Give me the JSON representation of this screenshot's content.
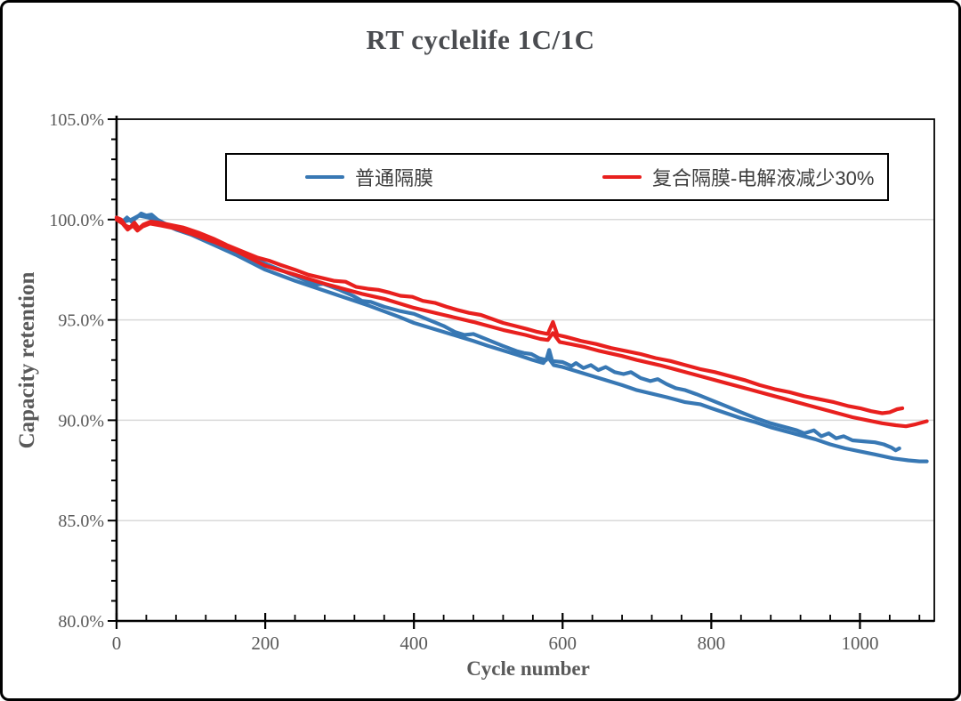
{
  "chart_data": {
    "type": "line",
    "title": "RT cyclelife 1C/1C",
    "xlabel": "Cycle number",
    "ylabel": "Capacity retention",
    "xlim": [
      0,
      1100
    ],
    "ylim": [
      80,
      105
    ],
    "x_major_ticks": [
      0,
      200,
      400,
      600,
      800,
      1000
    ],
    "x_major_labels": [
      "0",
      "200",
      "400",
      "600",
      "800",
      "1000"
    ],
    "x_minor_step": 40,
    "y_major_ticks": [
      80,
      85,
      90,
      95,
      100,
      105
    ],
    "y_major_labels": [
      "80.0%",
      "85.0%",
      "90.0%",
      "95.0%",
      "100.0%",
      "105.0%"
    ],
    "y_minor_step": 1,
    "grid": "horizontal-major-only",
    "gridline_color": "#d9d9d9",
    "axis_color": "#000000",
    "tick_label_color": "#595959",
    "legend_position": "top-inside-framed",
    "legend_entries": [
      "普通隔膜",
      "复合隔膜-电解液减少30%"
    ],
    "series": [
      {
        "id": "blue-cell-1",
        "legend": "普通隔膜",
        "color": "#3878b4",
        "points": [
          [
            0,
            100.1
          ],
          [
            8,
            99.9
          ],
          [
            14,
            100.1
          ],
          [
            20,
            99.9
          ],
          [
            27,
            100.1
          ],
          [
            33,
            100.3
          ],
          [
            40,
            100.2
          ],
          [
            47,
            100.25
          ],
          [
            55,
            100.0
          ],
          [
            65,
            99.8
          ],
          [
            78,
            99.6
          ],
          [
            90,
            99.5
          ],
          [
            105,
            99.3
          ],
          [
            120,
            99.1
          ],
          [
            140,
            98.75
          ],
          [
            160,
            98.4
          ],
          [
            180,
            98.1
          ],
          [
            200,
            97.8
          ],
          [
            220,
            97.5
          ],
          [
            240,
            97.2
          ],
          [
            258,
            96.9
          ],
          [
            268,
            96.75
          ],
          [
            278,
            96.8
          ],
          [
            300,
            96.5
          ],
          [
            318,
            96.2
          ],
          [
            330,
            95.95
          ],
          [
            342,
            95.9
          ],
          [
            360,
            95.65
          ],
          [
            380,
            95.45
          ],
          [
            400,
            95.3
          ],
          [
            420,
            95.0
          ],
          [
            440,
            94.7
          ],
          [
            455,
            94.4
          ],
          [
            468,
            94.25
          ],
          [
            480,
            94.3
          ],
          [
            500,
            94.0
          ],
          [
            520,
            93.7
          ],
          [
            538,
            93.45
          ],
          [
            548,
            93.35
          ],
          [
            558,
            93.3
          ],
          [
            568,
            93.1
          ],
          [
            578,
            93.0
          ],
          [
            582,
            93.5
          ],
          [
            586,
            92.95
          ],
          [
            600,
            92.9
          ],
          [
            612,
            92.7
          ],
          [
            618,
            92.85
          ],
          [
            628,
            92.6
          ],
          [
            638,
            92.75
          ],
          [
            648,
            92.5
          ],
          [
            658,
            92.65
          ],
          [
            670,
            92.4
          ],
          [
            682,
            92.3
          ],
          [
            692,
            92.4
          ],
          [
            705,
            92.1
          ],
          [
            718,
            91.95
          ],
          [
            728,
            92.05
          ],
          [
            740,
            91.8
          ],
          [
            752,
            91.6
          ],
          [
            765,
            91.5
          ],
          [
            780,
            91.3
          ],
          [
            800,
            91.0
          ],
          [
            820,
            90.7
          ],
          [
            840,
            90.4
          ],
          [
            860,
            90.1
          ],
          [
            880,
            89.85
          ],
          [
            900,
            89.65
          ],
          [
            915,
            89.5
          ],
          [
            925,
            89.35
          ],
          [
            938,
            89.5
          ],
          [
            948,
            89.2
          ],
          [
            958,
            89.35
          ],
          [
            968,
            89.1
          ],
          [
            978,
            89.2
          ],
          [
            990,
            89.0
          ],
          [
            1005,
            88.95
          ],
          [
            1020,
            88.9
          ],
          [
            1032,
            88.8
          ],
          [
            1042,
            88.65
          ],
          [
            1048,
            88.5
          ],
          [
            1053,
            88.6
          ]
        ]
      },
      {
        "id": "blue-cell-2",
        "legend": "普通隔膜",
        "color": "#3878b4",
        "points": [
          [
            0,
            100.05
          ],
          [
            10,
            99.9
          ],
          [
            20,
            100.0
          ],
          [
            30,
            100.2
          ],
          [
            42,
            100.1
          ],
          [
            52,
            100.0
          ],
          [
            62,
            99.8
          ],
          [
            80,
            99.5
          ],
          [
            100,
            99.25
          ],
          [
            130,
            98.75
          ],
          [
            160,
            98.25
          ],
          [
            200,
            97.5
          ],
          [
            240,
            96.95
          ],
          [
            280,
            96.45
          ],
          [
            300,
            96.2
          ],
          [
            340,
            95.7
          ],
          [
            380,
            95.15
          ],
          [
            400,
            94.85
          ],
          [
            440,
            94.4
          ],
          [
            480,
            93.95
          ],
          [
            500,
            93.7
          ],
          [
            540,
            93.25
          ],
          [
            560,
            93.0
          ],
          [
            574,
            92.85
          ],
          [
            580,
            93.15
          ],
          [
            588,
            92.75
          ],
          [
            600,
            92.65
          ],
          [
            640,
            92.2
          ],
          [
            680,
            91.75
          ],
          [
            700,
            91.5
          ],
          [
            740,
            91.15
          ],
          [
            765,
            90.9
          ],
          [
            785,
            90.8
          ],
          [
            800,
            90.6
          ],
          [
            820,
            90.35
          ],
          [
            840,
            90.1
          ],
          [
            860,
            89.9
          ],
          [
            880,
            89.65
          ],
          [
            900,
            89.45
          ],
          [
            920,
            89.25
          ],
          [
            940,
            89.05
          ],
          [
            960,
            88.8
          ],
          [
            980,
            88.6
          ],
          [
            1000,
            88.45
          ],
          [
            1020,
            88.3
          ],
          [
            1045,
            88.1
          ],
          [
            1065,
            88.0
          ],
          [
            1080,
            87.95
          ],
          [
            1090,
            87.95
          ]
        ]
      },
      {
        "id": "red-cell-1",
        "legend": "复合隔膜-电解液减少30%",
        "color": "#e8201e",
        "points": [
          [
            0,
            100.1
          ],
          [
            6,
            100.0
          ],
          [
            12,
            99.7
          ],
          [
            18,
            99.6
          ],
          [
            24,
            99.85
          ],
          [
            30,
            99.55
          ],
          [
            36,
            99.75
          ],
          [
            46,
            99.9
          ],
          [
            56,
            99.85
          ],
          [
            70,
            99.75
          ],
          [
            90,
            99.6
          ],
          [
            110,
            99.35
          ],
          [
            130,
            99.05
          ],
          [
            150,
            98.7
          ],
          [
            170,
            98.4
          ],
          [
            190,
            98.1
          ],
          [
            205,
            97.95
          ],
          [
            220,
            97.75
          ],
          [
            240,
            97.5
          ],
          [
            258,
            97.25
          ],
          [
            275,
            97.1
          ],
          [
            292,
            96.95
          ],
          [
            308,
            96.9
          ],
          [
            322,
            96.65
          ],
          [
            338,
            96.55
          ],
          [
            352,
            96.5
          ],
          [
            368,
            96.35
          ],
          [
            382,
            96.2
          ],
          [
            398,
            96.15
          ],
          [
            412,
            95.95
          ],
          [
            428,
            95.85
          ],
          [
            444,
            95.65
          ],
          [
            458,
            95.5
          ],
          [
            474,
            95.35
          ],
          [
            490,
            95.25
          ],
          [
            505,
            95.05
          ],
          [
            520,
            94.85
          ],
          [
            536,
            94.7
          ],
          [
            552,
            94.55
          ],
          [
            566,
            94.4
          ],
          [
            580,
            94.3
          ],
          [
            587,
            94.9
          ],
          [
            593,
            94.25
          ],
          [
            605,
            94.15
          ],
          [
            625,
            93.95
          ],
          [
            645,
            93.8
          ],
          [
            665,
            93.6
          ],
          [
            685,
            93.45
          ],
          [
            705,
            93.3
          ],
          [
            725,
            93.1
          ],
          [
            745,
            92.95
          ],
          [
            765,
            92.75
          ],
          [
            785,
            92.55
          ],
          [
            805,
            92.4
          ],
          [
            825,
            92.2
          ],
          [
            845,
            92.0
          ],
          [
            865,
            91.75
          ],
          [
            885,
            91.55
          ],
          [
            905,
            91.4
          ],
          [
            925,
            91.2
          ],
          [
            945,
            91.05
          ],
          [
            965,
            90.9
          ],
          [
            985,
            90.7
          ],
          [
            1000,
            90.6
          ],
          [
            1015,
            90.45
          ],
          [
            1030,
            90.35
          ],
          [
            1040,
            90.4
          ],
          [
            1050,
            90.55
          ],
          [
            1057,
            90.6
          ]
        ]
      },
      {
        "id": "red-cell-2",
        "legend": "复合隔膜-电解液减少30%",
        "color": "#e8201e",
        "points": [
          [
            0,
            100.0
          ],
          [
            8,
            99.8
          ],
          [
            15,
            99.5
          ],
          [
            22,
            99.7
          ],
          [
            28,
            99.45
          ],
          [
            35,
            99.65
          ],
          [
            45,
            99.8
          ],
          [
            60,
            99.7
          ],
          [
            80,
            99.55
          ],
          [
            100,
            99.3
          ],
          [
            130,
            98.9
          ],
          [
            160,
            98.45
          ],
          [
            200,
            97.7
          ],
          [
            240,
            97.25
          ],
          [
            280,
            96.8
          ],
          [
            300,
            96.6
          ],
          [
            330,
            96.3
          ],
          [
            360,
            96.05
          ],
          [
            400,
            95.6
          ],
          [
            440,
            95.25
          ],
          [
            480,
            94.9
          ],
          [
            520,
            94.5
          ],
          [
            550,
            94.25
          ],
          [
            570,
            94.05
          ],
          [
            580,
            94.0
          ],
          [
            587,
            94.35
          ],
          [
            596,
            93.9
          ],
          [
            610,
            93.8
          ],
          [
            630,
            93.65
          ],
          [
            650,
            93.45
          ],
          [
            680,
            93.2
          ],
          [
            700,
            93.0
          ],
          [
            730,
            92.75
          ],
          [
            760,
            92.45
          ],
          [
            790,
            92.15
          ],
          [
            820,
            91.85
          ],
          [
            850,
            91.55
          ],
          [
            880,
            91.25
          ],
          [
            900,
            91.05
          ],
          [
            930,
            90.75
          ],
          [
            950,
            90.55
          ],
          [
            970,
            90.35
          ],
          [
            990,
            90.15
          ],
          [
            1010,
            90.0
          ],
          [
            1030,
            89.85
          ],
          [
            1048,
            89.75
          ],
          [
            1062,
            89.7
          ],
          [
            1075,
            89.8
          ],
          [
            1090,
            89.95
          ]
        ]
      }
    ]
  },
  "legend": {
    "items": [
      {
        "label": "普通隔膜",
        "color": "#3878b4"
      },
      {
        "label": "复合隔膜-电解液减少30%",
        "color": "#e8201e"
      }
    ]
  }
}
